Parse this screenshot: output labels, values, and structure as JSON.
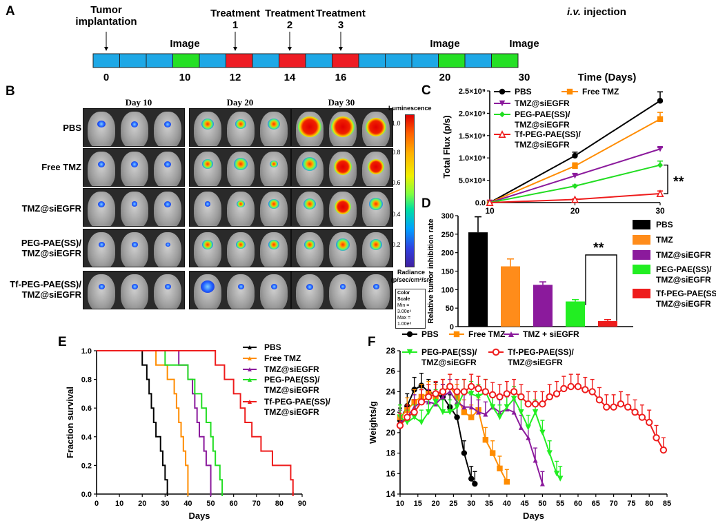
{
  "panels": {
    "a": "A",
    "b": "B",
    "c": "C",
    "d": "D",
    "e": "E",
    "f": "F"
  },
  "timeline": {
    "events": [
      {
        "label1": "Tumor",
        "label2": "implantation",
        "arrow": true
      },
      {
        "label1": "Image",
        "label2": "",
        "arrow": false
      },
      {
        "label1": "Treatment",
        "label2": "1",
        "arrow": true
      },
      {
        "label1": "Treatment",
        "label2": "2",
        "arrow": true
      },
      {
        "label1": "Treatment",
        "label2": "3",
        "arrow": true
      },
      {
        "label1": "Image",
        "label2": "",
        "arrow": false
      },
      {
        "label1": "Image",
        "label2": "",
        "arrow": false
      }
    ],
    "route_prefix": "i.v.",
    "route_suffix": " injection",
    "ticks": [
      "0",
      "10",
      "12",
      "14",
      "16",
      "20",
      "30"
    ],
    "axis_label": "Time (Days)",
    "colors": {
      "normal": "#1ea8e6",
      "image": "#25e025",
      "treatment": "#ee1c24"
    }
  },
  "imaging": {
    "days": [
      "Day 10",
      "Day 20",
      "Day 30"
    ],
    "groups": [
      {
        "line1": "PBS",
        "line2": ""
      },
      {
        "line1": "Free TMZ",
        "line2": ""
      },
      {
        "line1": "TMZ@siEGFR",
        "line2": ""
      },
      {
        "line1": "PEG-PAE(SS)/",
        "line2": "TMZ@siEGFR"
      },
      {
        "line1": "Tf-PEG-PAE(SS)/",
        "line2": "TMZ@siEGFR"
      }
    ],
    "colorbar": {
      "title": "Luminescence",
      "ticks": [
        "1.0",
        "0.8",
        "0.6",
        "0.4",
        "0.2"
      ],
      "unit1": "Radiance",
      "unit2": "(p/sec/cm²/sr)",
      "scale1": "Color Scale",
      "scale2": "Min = 3.00e⁶",
      "scale3": "Max = 1.00e⁸"
    }
  },
  "chart_data": [
    {
      "panel": "C",
      "type": "line",
      "xlabel": "",
      "ylabel": "Total Flux (p/s)",
      "x": [
        10,
        20,
        30
      ],
      "xticks": [
        "10",
        "20",
        "30"
      ],
      "ylim": [
        0,
        2500000000
      ],
      "yticks": [
        "0.0",
        "5.0×10⁸",
        "1.0×10⁹",
        "1.5×10⁹",
        "2.0×10⁹",
        "2.5×10⁹"
      ],
      "series": [
        {
          "name": "PBS",
          "color": "#000000",
          "marker": "circle",
          "values": [
            0,
            1050000000,
            2280000000
          ],
          "errors": [
            0,
            80000000,
            200000000
          ]
        },
        {
          "name": "Free TMZ",
          "color": "#ff8c00",
          "marker": "square",
          "values": [
            0,
            820000000,
            1870000000
          ],
          "errors": [
            0,
            70000000,
            150000000
          ]
        },
        {
          "name": "TMZ@siEGFR",
          "color": "#8b1a9c",
          "marker": "tri-down",
          "values": [
            0,
            600000000,
            1200000000
          ],
          "errors": [
            0,
            40000000,
            30000000
          ]
        },
        {
          "name": "PEG-PAE(SS)/ TMZ@siEGFR",
          "color": "#22dd22",
          "marker": "diamond",
          "values": [
            0,
            370000000,
            840000000
          ],
          "errors": [
            0,
            25000000,
            90000000
          ]
        },
        {
          "name": "Tf-PEG-PAE(SS)/ TMZ@siEGFR",
          "color": "#ee1c1c",
          "marker": "tri-up",
          "values": [
            0,
            70000000,
            200000000
          ],
          "errors": [
            0,
            15000000,
            60000000
          ]
        }
      ],
      "annotation": "**"
    },
    {
      "panel": "D",
      "type": "bar",
      "ylabel": "Relative tumor inhibition rate",
      "ylim": [
        0,
        300
      ],
      "yticks": [
        "0",
        "50",
        "100",
        "150",
        "200",
        "250",
        "300"
      ],
      "categories": [
        "PBS",
        "TMZ",
        "TMZ@siEGFR",
        "PEG-PAE(SS)/ TMZ@siEGFR",
        "Tf-PEG-PAE(SS)/ TMZ@siEGFR"
      ],
      "values": [
        255,
        163,
        113,
        68,
        15
      ],
      "errors": [
        42,
        20,
        8,
        5,
        4
      ],
      "colors": [
        "#000000",
        "#ff8c1a",
        "#8b1a9c",
        "#22ee22",
        "#ee1c1c"
      ],
      "annotation": "**"
    },
    {
      "panel": "E",
      "type": "line",
      "xlabel": "Days",
      "ylabel": "Fraction survival",
      "xlim": [
        0,
        90
      ],
      "ylim": [
        0,
        1
      ],
      "xticks": [
        "0",
        "10",
        "20",
        "30",
        "40",
        "50",
        "60",
        "70",
        "80",
        "90"
      ],
      "yticks": [
        "0.0",
        "0.2",
        "0.4",
        "0.6",
        "0.8",
        "1.0"
      ],
      "series": [
        {
          "name": "PBS",
          "color": "#000000",
          "events": [
            20,
            22,
            23,
            24,
            25,
            26,
            28,
            29,
            30,
            31
          ]
        },
        {
          "name": "Free TMZ",
          "color": "#ff8c00",
          "events": [
            26,
            31,
            34,
            35,
            36,
            37,
            38,
            39,
            40,
            40
          ]
        },
        {
          "name": "TMZ@siEGFR",
          "color": "#8b1a9c",
          "events": [
            36,
            40,
            42,
            43,
            44,
            45,
            47,
            48,
            50,
            50
          ]
        },
        {
          "name": "PEG-PAE(SS)/ TMZ@siEGFR",
          "color": "#22dd22",
          "events": [
            30,
            40,
            43,
            46,
            48,
            50,
            51,
            52,
            54,
            55
          ]
        },
        {
          "name": "Tf-PEG-PAE(SS)/ TMZ@siEGFR",
          "color": "#ee1c1c",
          "events": [
            52,
            56,
            60,
            63,
            65,
            68,
            72,
            77,
            85,
            86
          ]
        }
      ]
    },
    {
      "panel": "F",
      "type": "line",
      "xlabel": "Days",
      "ylabel": "Weights/g",
      "xlim": [
        10,
        85
      ],
      "ylim": [
        14,
        28
      ],
      "xticks": [
        "10",
        "15",
        "20",
        "25",
        "30",
        "35",
        "40",
        "45",
        "50",
        "55",
        "60",
        "65",
        "70",
        "75",
        "80",
        "85"
      ],
      "yticks": [
        "14",
        "16",
        "18",
        "20",
        "22",
        "24",
        "26",
        "28"
      ],
      "series": [
        {
          "name": "PBS",
          "color": "#000000",
          "marker": "circle",
          "x": [
            10,
            12,
            14,
            16,
            18,
            20,
            22,
            24,
            26,
            28,
            30,
            31
          ],
          "values": [
            21.2,
            22.6,
            24.2,
            24.6,
            24.0,
            23.7,
            23.5,
            22.5,
            21.5,
            18,
            15.5,
            15.0
          ]
        },
        {
          "name": "Free TMZ",
          "color": "#ff8c00",
          "marker": "square",
          "x": [
            10,
            12,
            14,
            16,
            18,
            20,
            22,
            24,
            26,
            28,
            30,
            32,
            34,
            36,
            38,
            40
          ],
          "values": [
            21.5,
            22.2,
            23,
            23.5,
            23.8,
            23.5,
            24,
            24.5,
            23.5,
            22,
            21.5,
            22.2,
            19.3,
            18,
            16.5,
            15.2
          ]
        },
        {
          "name": "TMZ + siEGFR",
          "color": "#8b1a9c",
          "marker": "tri-up",
          "x": [
            10,
            12,
            14,
            16,
            18,
            20,
            22,
            24,
            26,
            28,
            30,
            32,
            34,
            36,
            38,
            40,
            42,
            44,
            46,
            48,
            50
          ],
          "values": [
            21,
            21.5,
            22.5,
            23,
            23,
            22.8,
            23.5,
            24,
            23,
            22.5,
            22.5,
            22,
            21.8,
            22.5,
            22,
            22.3,
            22,
            20.5,
            19.5,
            17.3,
            15
          ]
        },
        {
          "name": "PEG-PAE(SS)/ TMZ@siEGFR",
          "color": "#22ee22",
          "marker": "tri-down",
          "x": [
            10,
            12,
            14,
            16,
            18,
            20,
            22,
            24,
            26,
            28,
            30,
            32,
            34,
            36,
            38,
            40,
            42,
            44,
            46,
            48,
            50,
            52,
            54,
            55
          ],
          "values": [
            21.5,
            21,
            21.5,
            21,
            22,
            23,
            22,
            22,
            22.5,
            24,
            23.8,
            23.5,
            24,
            22.5,
            21.5,
            22.5,
            23.3,
            22,
            20.5,
            22,
            20,
            18,
            16,
            15.5
          ]
        },
        {
          "name": "Tf-PEG-PAE(SS)/ TMZ@siEGFR",
          "color": "#ee1c1c",
          "marker": "circle-open",
          "x": [
            10,
            12,
            14,
            16,
            18,
            20,
            22,
            24,
            26,
            28,
            30,
            32,
            34,
            36,
            38,
            40,
            42,
            44,
            46,
            48,
            50,
            52,
            54,
            56,
            58,
            60,
            62,
            64,
            66,
            68,
            70,
            72,
            74,
            76,
            78,
            80,
            82,
            84
          ],
          "values": [
            20.7,
            21.5,
            22,
            23,
            23.5,
            23.8,
            24,
            24.5,
            24,
            24,
            24.5,
            24.3,
            24,
            23.7,
            23.5,
            23.8,
            24,
            23.5,
            22.8,
            22.8,
            22.8,
            23.5,
            23.8,
            24.3,
            24.5,
            24.5,
            24.2,
            24,
            23.2,
            22.5,
            22.5,
            22.8,
            22.5,
            22,
            21.5,
            21,
            19.5,
            18.3
          ]
        }
      ]
    }
  ]
}
